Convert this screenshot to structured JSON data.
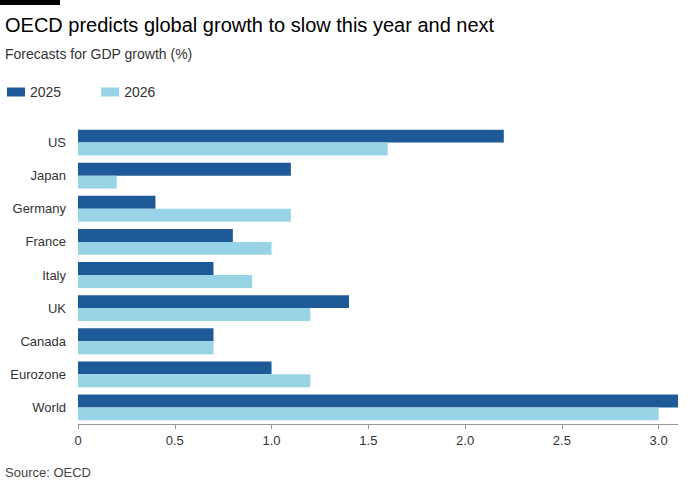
{
  "chart_data": {
    "type": "bar",
    "orientation": "horizontal",
    "title": "OECD predicts global growth to slow this year and next",
    "subtitle": "Forecasts for GDP growth (%)",
    "source": "Source: OECD",
    "categories": [
      "US",
      "Japan",
      "Germany",
      "France",
      "Italy",
      "UK",
      "Canada",
      "Eurozone",
      "World"
    ],
    "series": [
      {
        "name": "2025",
        "color": "#1e5a97",
        "values": [
          2.2,
          1.1,
          0.4,
          0.8,
          0.7,
          1.4,
          0.7,
          1.0,
          3.1
        ]
      },
      {
        "name": "2026",
        "color": "#98d4e6",
        "values": [
          1.6,
          0.2,
          1.1,
          1.0,
          0.9,
          1.2,
          0.7,
          1.2,
          3.0
        ]
      }
    ],
    "xlim": [
      0,
      3.1
    ],
    "xticks": [
      0,
      0.5,
      {
        "value": 1,
        "label": "1.0"
      },
      1.5,
      {
        "value": 2,
        "label": "2.0"
      },
      2.5,
      {
        "value": 3,
        "label": "3.0"
      }
    ],
    "grid": false,
    "legend": "top-left",
    "data_labels": false
  }
}
